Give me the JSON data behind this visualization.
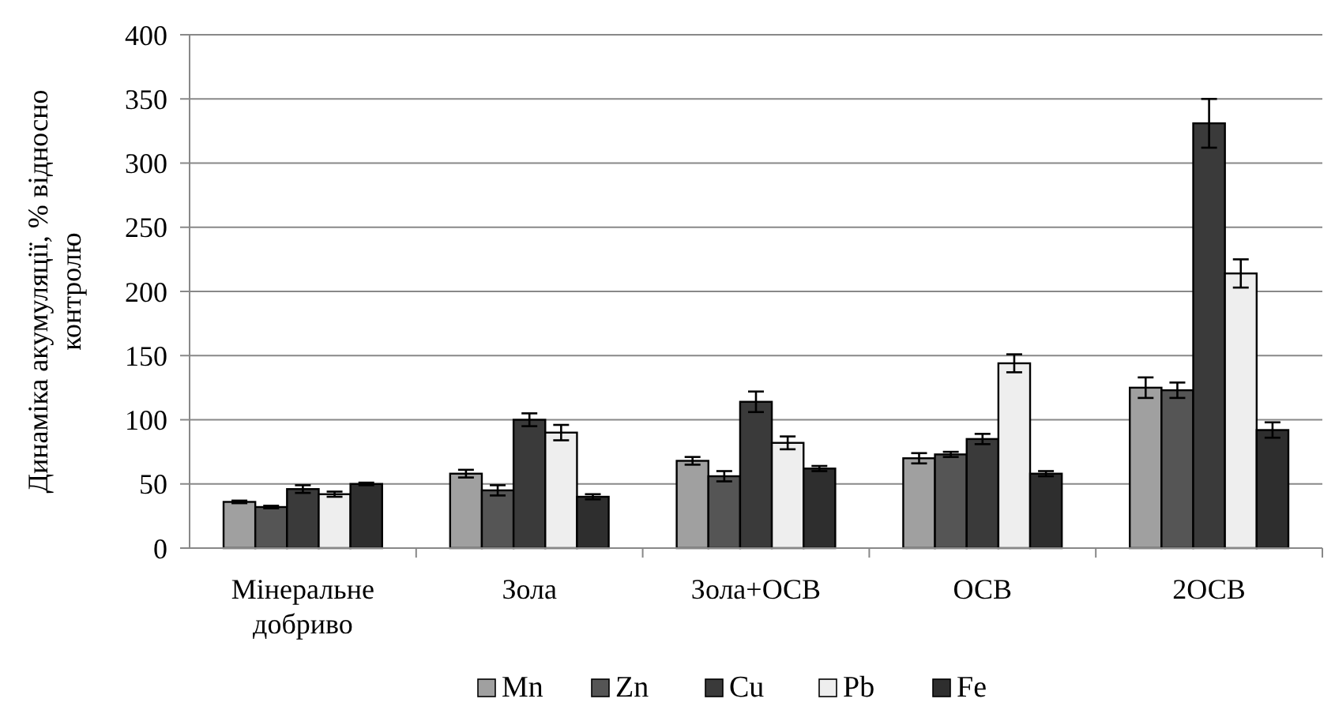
{
  "chart_data": {
    "type": "bar",
    "ylabel": "Динаміка акумуляції, % відносно контролю",
    "categories": [
      "Мінеральне добриво",
      "Зола",
      "Зола+ОСВ",
      "ОСВ",
      "2ОСВ"
    ],
    "series": [
      {
        "name": "Mn",
        "color": "#a0a0a0",
        "values": [
          36,
          58,
          68,
          70,
          125
        ],
        "errors": [
          1,
          3,
          3,
          4,
          8
        ]
      },
      {
        "name": "Zn",
        "color": "#555555",
        "values": [
          32,
          45,
          56,
          73,
          123
        ],
        "errors": [
          1,
          4,
          4,
          2,
          6
        ]
      },
      {
        "name": "Cu",
        "color": "#3a3a3a",
        "values": [
          46,
          100,
          114,
          85,
          331
        ],
        "errors": [
          3,
          5,
          8,
          4,
          19
        ]
      },
      {
        "name": "Pb",
        "color": "#eeeeee",
        "values": [
          42,
          90,
          82,
          144,
          214
        ],
        "errors": [
          2,
          6,
          5,
          7,
          11
        ]
      },
      {
        "name": "Fe",
        "color": "#2e2e2e",
        "values": [
          50,
          40,
          62,
          58,
          92
        ],
        "errors": [
          1,
          2,
          2,
          2,
          6
        ]
      }
    ],
    "ylim": [
      0,
      400
    ],
    "yticks": [
      0,
      50,
      100,
      150,
      200,
      250,
      300,
      350,
      400
    ],
    "grid": "y",
    "legend": "bottom"
  }
}
